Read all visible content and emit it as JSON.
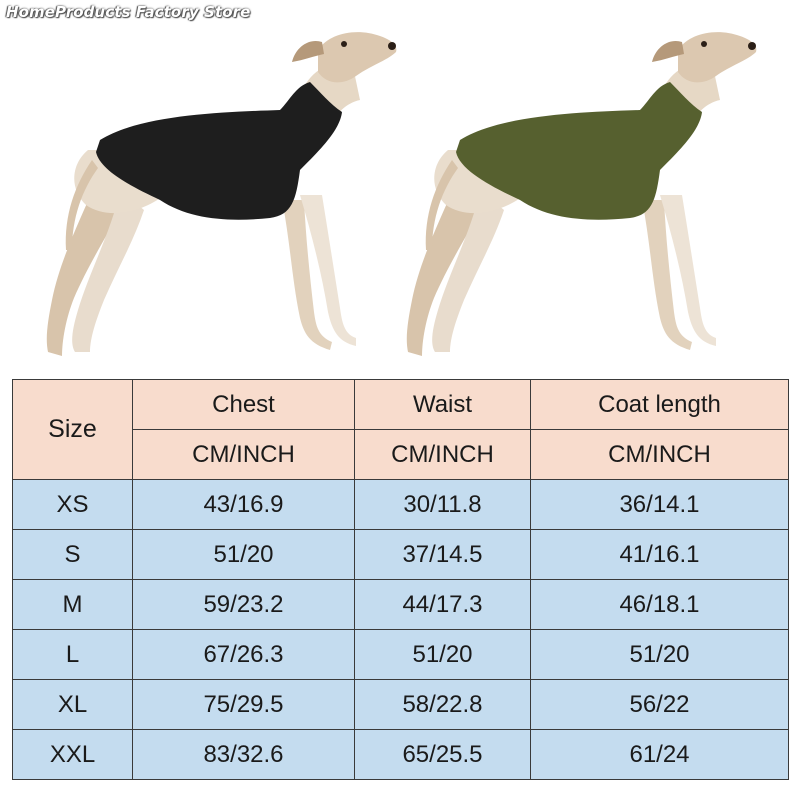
{
  "watermark": "HomeProducts Factory Store",
  "photo": {
    "left_dog_coat_color": "#1e1e1e",
    "right_dog_coat_color": "#56602f",
    "dog_fur_color": "#dcc8b0"
  },
  "table": {
    "size_header": "Size",
    "columns": [
      {
        "label": "Chest",
        "unit": "CM/INCH"
      },
      {
        "label": "Waist",
        "unit": "CM/INCH"
      },
      {
        "label": "Coat length",
        "unit": "CM/INCH"
      }
    ],
    "rows": [
      {
        "size": "XS",
        "chest": "43/16.9",
        "waist": "30/11.8",
        "length": "36/14.1"
      },
      {
        "size": "S",
        "chest": "51/20",
        "waist": "37/14.5",
        "length": "41/16.1"
      },
      {
        "size": "M",
        "chest": "59/23.2",
        "waist": "44/17.3",
        "length": "46/18.1"
      },
      {
        "size": "L",
        "chest": "67/26.3",
        "waist": "51/20",
        "length": "51/20"
      },
      {
        "size": "XL",
        "chest": "75/29.5",
        "waist": "58/22.8",
        "length": "56/22"
      },
      {
        "size": "XXL",
        "chest": "83/32.6",
        "waist": "65/25.5",
        "length": "61/24"
      }
    ],
    "header_color": "#f8dccd",
    "body_color": "#c4dcef"
  }
}
